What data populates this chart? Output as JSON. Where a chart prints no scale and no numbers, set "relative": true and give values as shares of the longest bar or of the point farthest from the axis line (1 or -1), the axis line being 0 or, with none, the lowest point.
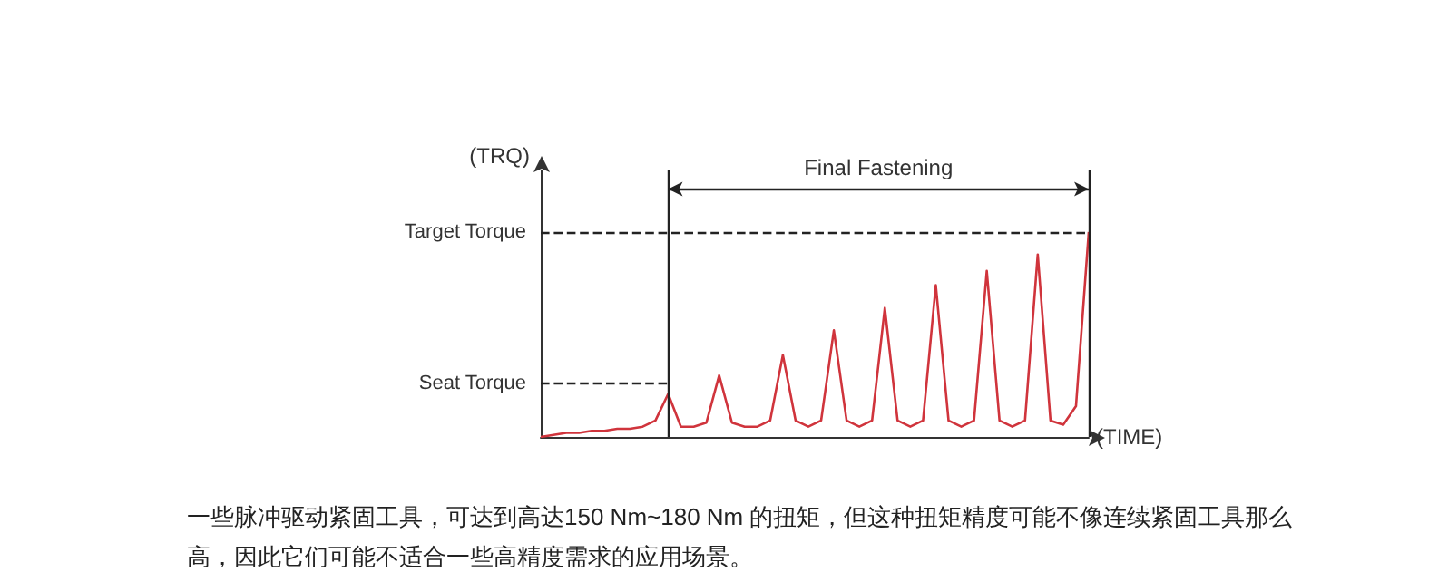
{
  "chart_data": {
    "type": "line",
    "ylabel": "(TRQ)",
    "xlabel": "(TIME)",
    "categories": [
      null,
      null,
      null,
      null,
      null,
      null,
      null,
      null,
      null,
      null,
      null,
      null,
      null,
      null,
      null,
      null,
      null,
      null,
      null,
      null,
      null,
      null,
      null,
      null,
      null,
      null,
      null,
      null,
      null,
      null,
      null,
      null,
      null,
      null,
      null,
      null,
      null,
      null,
      null,
      null,
      null,
      null,
      null,
      null
    ],
    "relative": true,
    "line_style": "solid",
    "series": [
      {
        "color": "#d0343c",
        "values": [
          0,
          0.01,
          0.02,
          0.02,
          0.03,
          0.03,
          0.04,
          0.04,
          0.05,
          0.08,
          0.21,
          0.05,
          0.05,
          0.07,
          0.3,
          0.07,
          0.05,
          0.05,
          0.08,
          0.4,
          0.08,
          0.05,
          0.08,
          0.52,
          0.08,
          0.05,
          0.08,
          0.63,
          0.08,
          0.05,
          0.08,
          0.74,
          0.08,
          0.05,
          0.08,
          0.81,
          0.08,
          0.05,
          0.08,
          0.89,
          0.08,
          0.06,
          0.15,
          1.0
        ]
      }
    ],
    "ref_lines": [
      {
        "axis": "y",
        "value": 1.0,
        "label": "Target Torque",
        "line_style": "dashed",
        "color": "#222222"
      },
      {
        "axis": "y",
        "value": 0.26,
        "label": "Seat Torque",
        "line_style": "dashed",
        "color": "#222222"
      }
    ],
    "annotations": [
      "Final Fastening",
      "一些脉冲驱动紧固工具，可达到高达150 Nm~180 Nm 的扭矩，但这种扭矩精度可能不像连续紧固工具那么高，因此它们可能不适合一些高精度需求的应用场景。"
    ]
  }
}
